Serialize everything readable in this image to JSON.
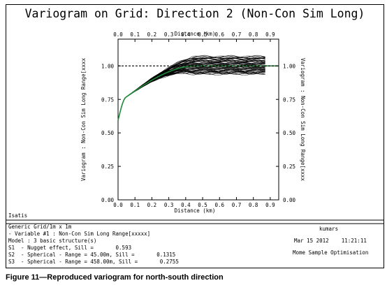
{
  "chart_data": {
    "type": "line",
    "title": "Variogram on Grid: Direction 2 (Non-Con Sim Long)",
    "xlabel": "Distance (km)",
    "ylabel_left": "Variogram : Non-Con Sim Long Range[xxxx",
    "ylabel_right": "Variogram : Non-Con Sim Long Range[xxxx",
    "xlim": [
      0,
      0.95
    ],
    "ylim": [
      0,
      1.2
    ],
    "x_ticks": [
      "0.0",
      "0.1",
      "0.2",
      "0.3",
      "0.4",
      "0.5",
      "0.6",
      "0.7",
      "0.8",
      "0.9"
    ],
    "y_ticks": [
      "0.00",
      "0.25",
      "0.50",
      "0.75",
      "1.00"
    ],
    "sill_reference": 1.0,
    "grid": false,
    "model": {
      "nugget": 0.593,
      "structures": [
        {
          "type": "spherical",
          "range_km": 0.045,
          "sill": 0.1315
        },
        {
          "type": "spherical",
          "range_km": 0.458,
          "sill": 0.2755
        }
      ],
      "color": "#1e8a3a"
    },
    "realizations": {
      "count": 60,
      "x_max": 0.87,
      "end_min": 0.94,
      "end_max": 1.07,
      "color": "#000000"
    }
  },
  "info": {
    "software": "Isatis",
    "line1": "Generic Grid/1m x 1m",
    "line2": "- Variable #1 : Non-Con Sim Long Range[xxxxx]",
    "line3": "Model : 3 basic structure(s)",
    "line4": "S1  - Nugget effect, Sill =       0.593",
    "line5": "S2  - Spherical - Range = 45.00m, Sill =       0.1315",
    "line6": "S3  - Spherical - Range = 458.00m, Sill =       0.2755",
    "user": "kumars",
    "date": "Mar 15 2012    11:21:11",
    "project": "Mome Sample Optimisation"
  },
  "caption": "Figure 11—Reproduced variogram for north-south direction"
}
